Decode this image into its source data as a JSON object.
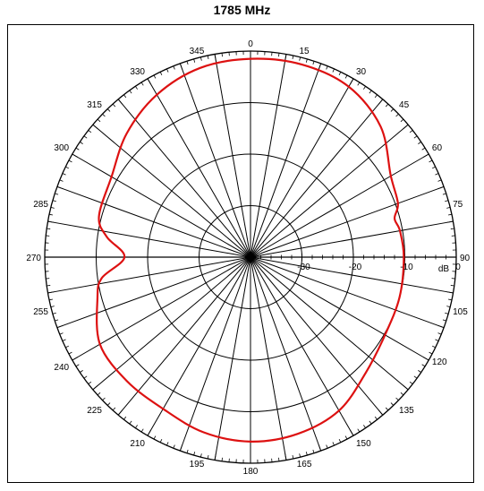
{
  "chart_data": {
    "type": "polar",
    "title": "1785 MHz",
    "unit": "dB",
    "angle_labels": [
      "0",
      "15",
      "30",
      "45",
      "60",
      "75",
      "90",
      "105",
      "120",
      "135",
      "150",
      "165",
      "180",
      "195",
      "210",
      "225",
      "240",
      "255",
      "270",
      "285",
      "300",
      "315",
      "330",
      "345"
    ],
    "radial_ticks": [
      -30,
      -20,
      -10,
      0
    ],
    "radial_range": [
      -40,
      0
    ],
    "grid": true,
    "series": [
      {
        "color": "#dd1111",
        "angles_deg": [
          0,
          15,
          30,
          45,
          60,
          70,
          75,
          80,
          90,
          105,
          120,
          135,
          150,
          165,
          180,
          195,
          210,
          225,
          240,
          255,
          262,
          270,
          278,
          285,
          300,
          315,
          330,
          345
        ],
        "values_db": [
          -1.5,
          -1.3,
          -1.8,
          -4.2,
          -8.5,
          -9.5,
          -11,
          -10.5,
          -10.2,
          -10,
          -9.8,
          -8.3,
          -5.6,
          -4.5,
          -4.2,
          -4.8,
          -6.0,
          -6.0,
          -6.2,
          -9.2,
          -10.8,
          -15.5,
          -11.8,
          -9.5,
          -8.8,
          -6.0,
          -3.6,
          -2.0
        ]
      }
    ]
  }
}
